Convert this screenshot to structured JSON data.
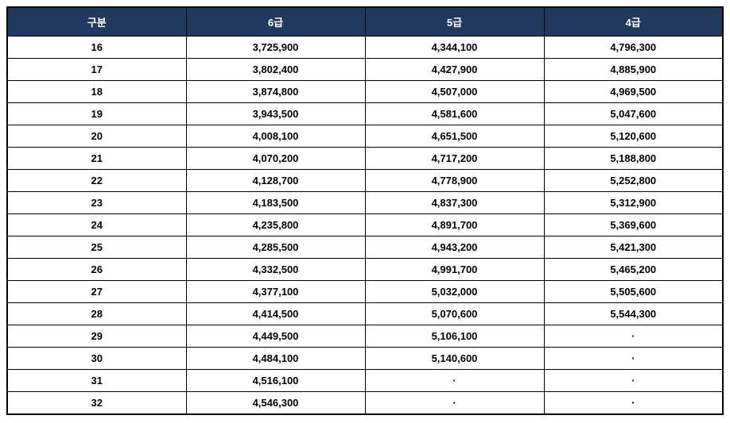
{
  "table": {
    "type": "table",
    "header_bg": "#1f3a5f",
    "header_fg": "#ffffff",
    "border_color": "#000000",
    "cell_bg": "#ffffff",
    "cell_fg": "#000000",
    "font_size_header": 13,
    "font_size_cell": 13,
    "columns": [
      "구분",
      "6급",
      "5급",
      "4급"
    ],
    "rows": [
      [
        "16",
        "3,725,900",
        "4,344,100",
        "4,796,300"
      ],
      [
        "17",
        "3,802,400",
        "4,427,900",
        "4,885,900"
      ],
      [
        "18",
        "3,874,800",
        "4,507,000",
        "4,969,500"
      ],
      [
        "19",
        "3,943,500",
        "4,581,600",
        "5,047,600"
      ],
      [
        "20",
        "4,008,100",
        "4,651,500",
        "5,120,600"
      ],
      [
        "21",
        "4,070,200",
        "4,717,200",
        "5,188,800"
      ],
      [
        "22",
        "4,128,700",
        "4,778,900",
        "5,252,800"
      ],
      [
        "23",
        "4,183,500",
        "4,837,300",
        "5,312,900"
      ],
      [
        "24",
        "4,235,800",
        "4,891,700",
        "5,369,600"
      ],
      [
        "25",
        "4,285,500",
        "4,943,200",
        "5,421,300"
      ],
      [
        "26",
        "4,332,500",
        "4,991,700",
        "5,465,200"
      ],
      [
        "27",
        "4,377,100",
        "5,032,000",
        "5,505,600"
      ],
      [
        "28",
        "4,414,500",
        "5,070,600",
        "5,544,300"
      ],
      [
        "29",
        "4,449,500",
        "5,106,100",
        "·"
      ],
      [
        "30",
        "4,484,100",
        "5,140,600",
        "·"
      ],
      [
        "31",
        "4,516,100",
        "·",
        "·"
      ],
      [
        "32",
        "4,546,300",
        "·",
        "·"
      ]
    ]
  }
}
